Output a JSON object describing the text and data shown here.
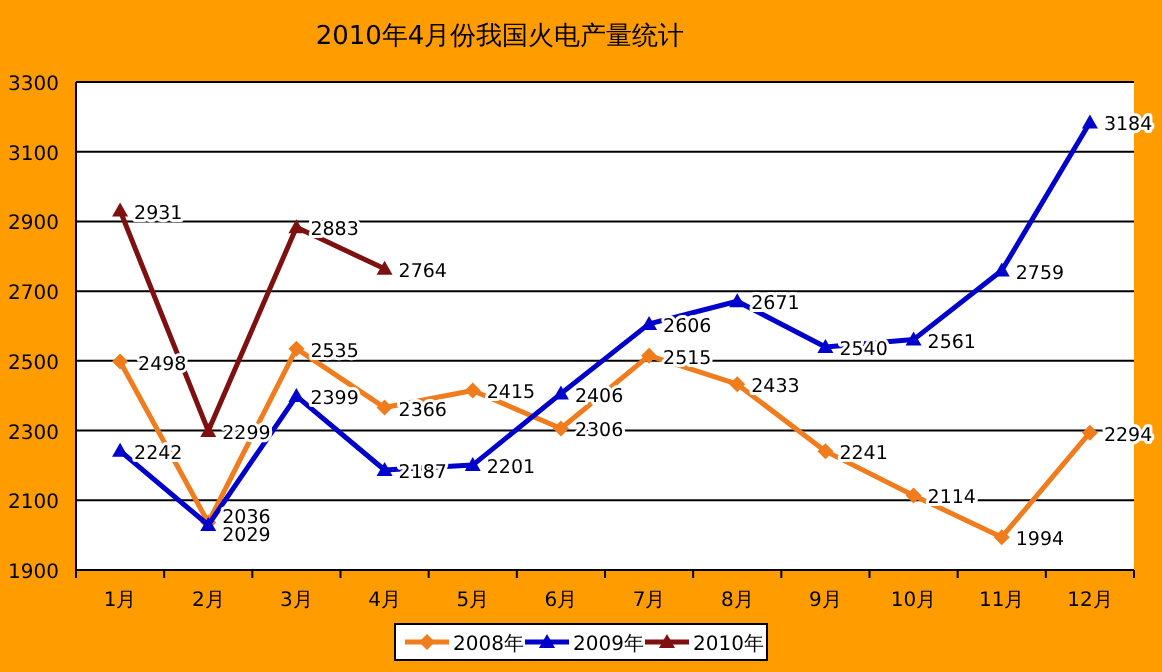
{
  "chart_data": {
    "type": "line",
    "title": "2010年4月份我国火电产量统计",
    "categories": [
      "1月",
      "2月",
      "3月",
      "4月",
      "5月",
      "6月",
      "7月",
      "8月",
      "9月",
      "10月",
      "11月",
      "12月"
    ],
    "series": [
      {
        "name": "2008年",
        "color": "#f07c1e",
        "marker": "diamond",
        "values": [
          2498,
          2036,
          2535,
          2366,
          2415,
          2306,
          2515,
          2433,
          2241,
          2114,
          1994,
          2294
        ]
      },
      {
        "name": "2009年",
        "color": "#0000cc",
        "marker": "triangle",
        "values": [
          2242,
          2029,
          2399,
          2187,
          2201,
          2406,
          2606,
          2671,
          2540,
          2561,
          2759,
          3184
        ]
      },
      {
        "name": "2010年",
        "color": "#7f1010",
        "marker": "triangle",
        "values": [
          2931,
          2299,
          2883,
          2764,
          null,
          null,
          null,
          null,
          null,
          null,
          null,
          null
        ]
      }
    ],
    "ylim": [
      1900,
      3300
    ],
    "yticks": [
      1900,
      2100,
      2300,
      2500,
      2700,
      2900,
      3100,
      3300
    ],
    "grid": "y",
    "legend": "bottom",
    "data_labels": true
  }
}
